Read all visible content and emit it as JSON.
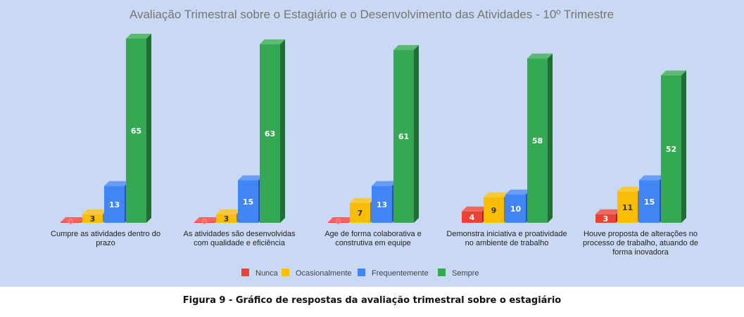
{
  "chart_data": {
    "type": "bar",
    "title": "Avaliação Trimestral sobre o Estagiário e o Desenvolvimento das Atividades - 10º Trimestre",
    "categories": [
      [
        "Cumpre as atividades dentro do",
        "prazo"
      ],
      [
        "As atividades são desenvolvidas",
        "com qualidade e eficiência"
      ],
      [
        "Age de forma colaborativa e",
        "construtiva em equipe"
      ],
      [
        "Demonstra iniciativa e proatividade",
        "no ambiente de trabalho"
      ],
      [
        "Houve proposta de alterações no",
        "processo de trabalho, atuando de",
        "forma inovadora"
      ]
    ],
    "series": [
      {
        "name": "Nunca",
        "color": "#ea4335",
        "values": [
          0,
          0,
          0,
          4,
          3
        ]
      },
      {
        "name": "Ocasionalmente",
        "color": "#fbbc04",
        "values": [
          3,
          3,
          7,
          9,
          11
        ]
      },
      {
        "name": "Frequentemente",
        "color": "#4285f4",
        "values": [
          13,
          15,
          13,
          10,
          15
        ]
      },
      {
        "name": "Sempre",
        "color": "#34a853",
        "values": [
          65,
          63,
          61,
          58,
          52
        ]
      }
    ],
    "ylim": [
      0,
      65
    ],
    "grid": false,
    "legend": "bottom",
    "style": "3d",
    "background": "#c9d9f3"
  },
  "caption": "Figura 9 - Gráfico de respostas da avaliação trimestral sobre o estagiário"
}
